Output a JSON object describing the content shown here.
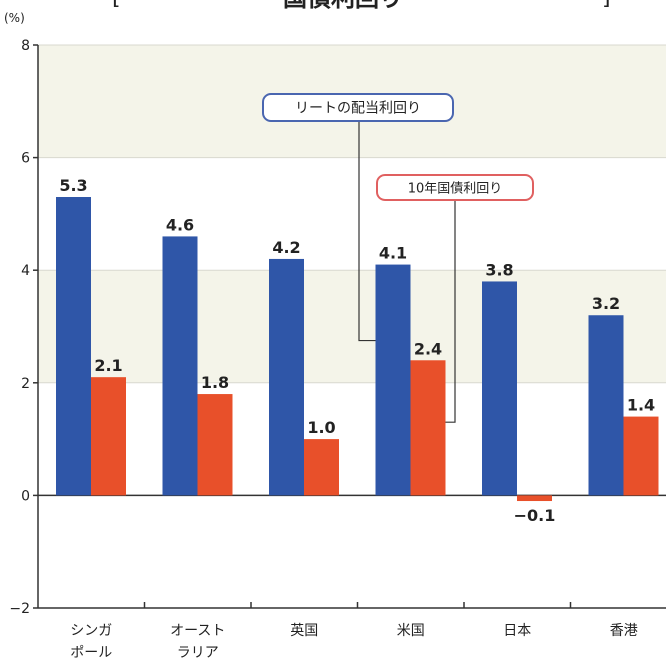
{
  "chart_data": {
    "type": "bar",
    "title": "国債利回り",
    "title_bracket_left": "[",
    "title_bracket_right": "]",
    "ylabel": "(%)",
    "ylim": [
      -2,
      8
    ],
    "yticks": [
      -2,
      0,
      2,
      4,
      6,
      8
    ],
    "categories": [
      [
        "シンガ",
        "ポール"
      ],
      [
        "オースト",
        "ラリア"
      ],
      [
        "英国"
      ],
      [
        "米国"
      ],
      [
        "日本"
      ],
      [
        "香港"
      ]
    ],
    "series": [
      {
        "name": "リートの配当利回り",
        "color": "#2f56a8",
        "values": [
          5.3,
          4.6,
          4.2,
          4.1,
          3.8,
          3.2
        ]
      },
      {
        "name": "10年国債利回り",
        "color": "#e8502a",
        "values": [
          2.1,
          1.8,
          1.0,
          2.4,
          -0.1,
          1.4
        ]
      }
    ],
    "value_labels": [
      [
        "5.3",
        "4.6",
        "4.2",
        "4.1",
        "3.8",
        "3.2"
      ],
      [
        "2.1",
        "1.8",
        "1.0",
        "2.4",
        "−0.1",
        "1.4"
      ]
    ],
    "band_color": "#f4f4e9",
    "legend_callouts": [
      {
        "series": 0,
        "category": 3,
        "border_color": "#4a66b0"
      },
      {
        "series": 1,
        "category": 3,
        "border_color": "#e06060"
      }
    ]
  }
}
